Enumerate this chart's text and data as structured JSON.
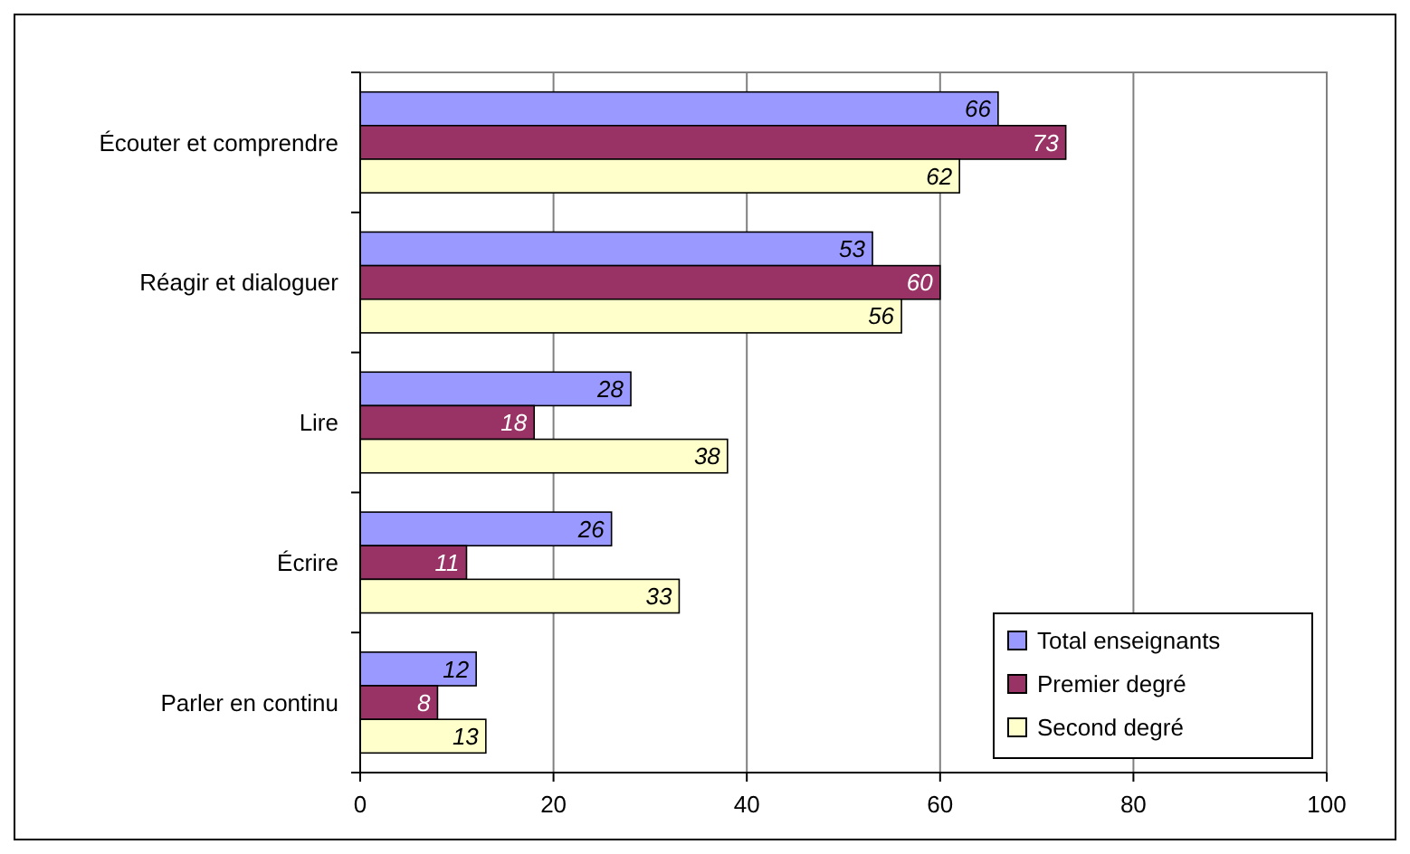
{
  "chart_data": {
    "type": "bar",
    "orientation": "horizontal",
    "categories": [
      "Écouter et comprendre",
      "Réagir et dialoguer",
      "Lire",
      "Écrire",
      "Parler en continu"
    ],
    "series": [
      {
        "name": "Total enseignants",
        "color": "#9999ff",
        "values": [
          66,
          53,
          28,
          26,
          12
        ]
      },
      {
        "name": "Premier degré",
        "color": "#993366",
        "values": [
          73,
          60,
          18,
          11,
          8
        ]
      },
      {
        "name": "Second degré",
        "color": "#ffffcc",
        "values": [
          62,
          56,
          38,
          33,
          13
        ]
      }
    ],
    "xlim": [
      0,
      100
    ],
    "xticks": [
      0,
      20,
      40,
      60,
      80,
      100
    ],
    "grid": "x",
    "legend": "bottom right",
    "data_labels": true
  }
}
